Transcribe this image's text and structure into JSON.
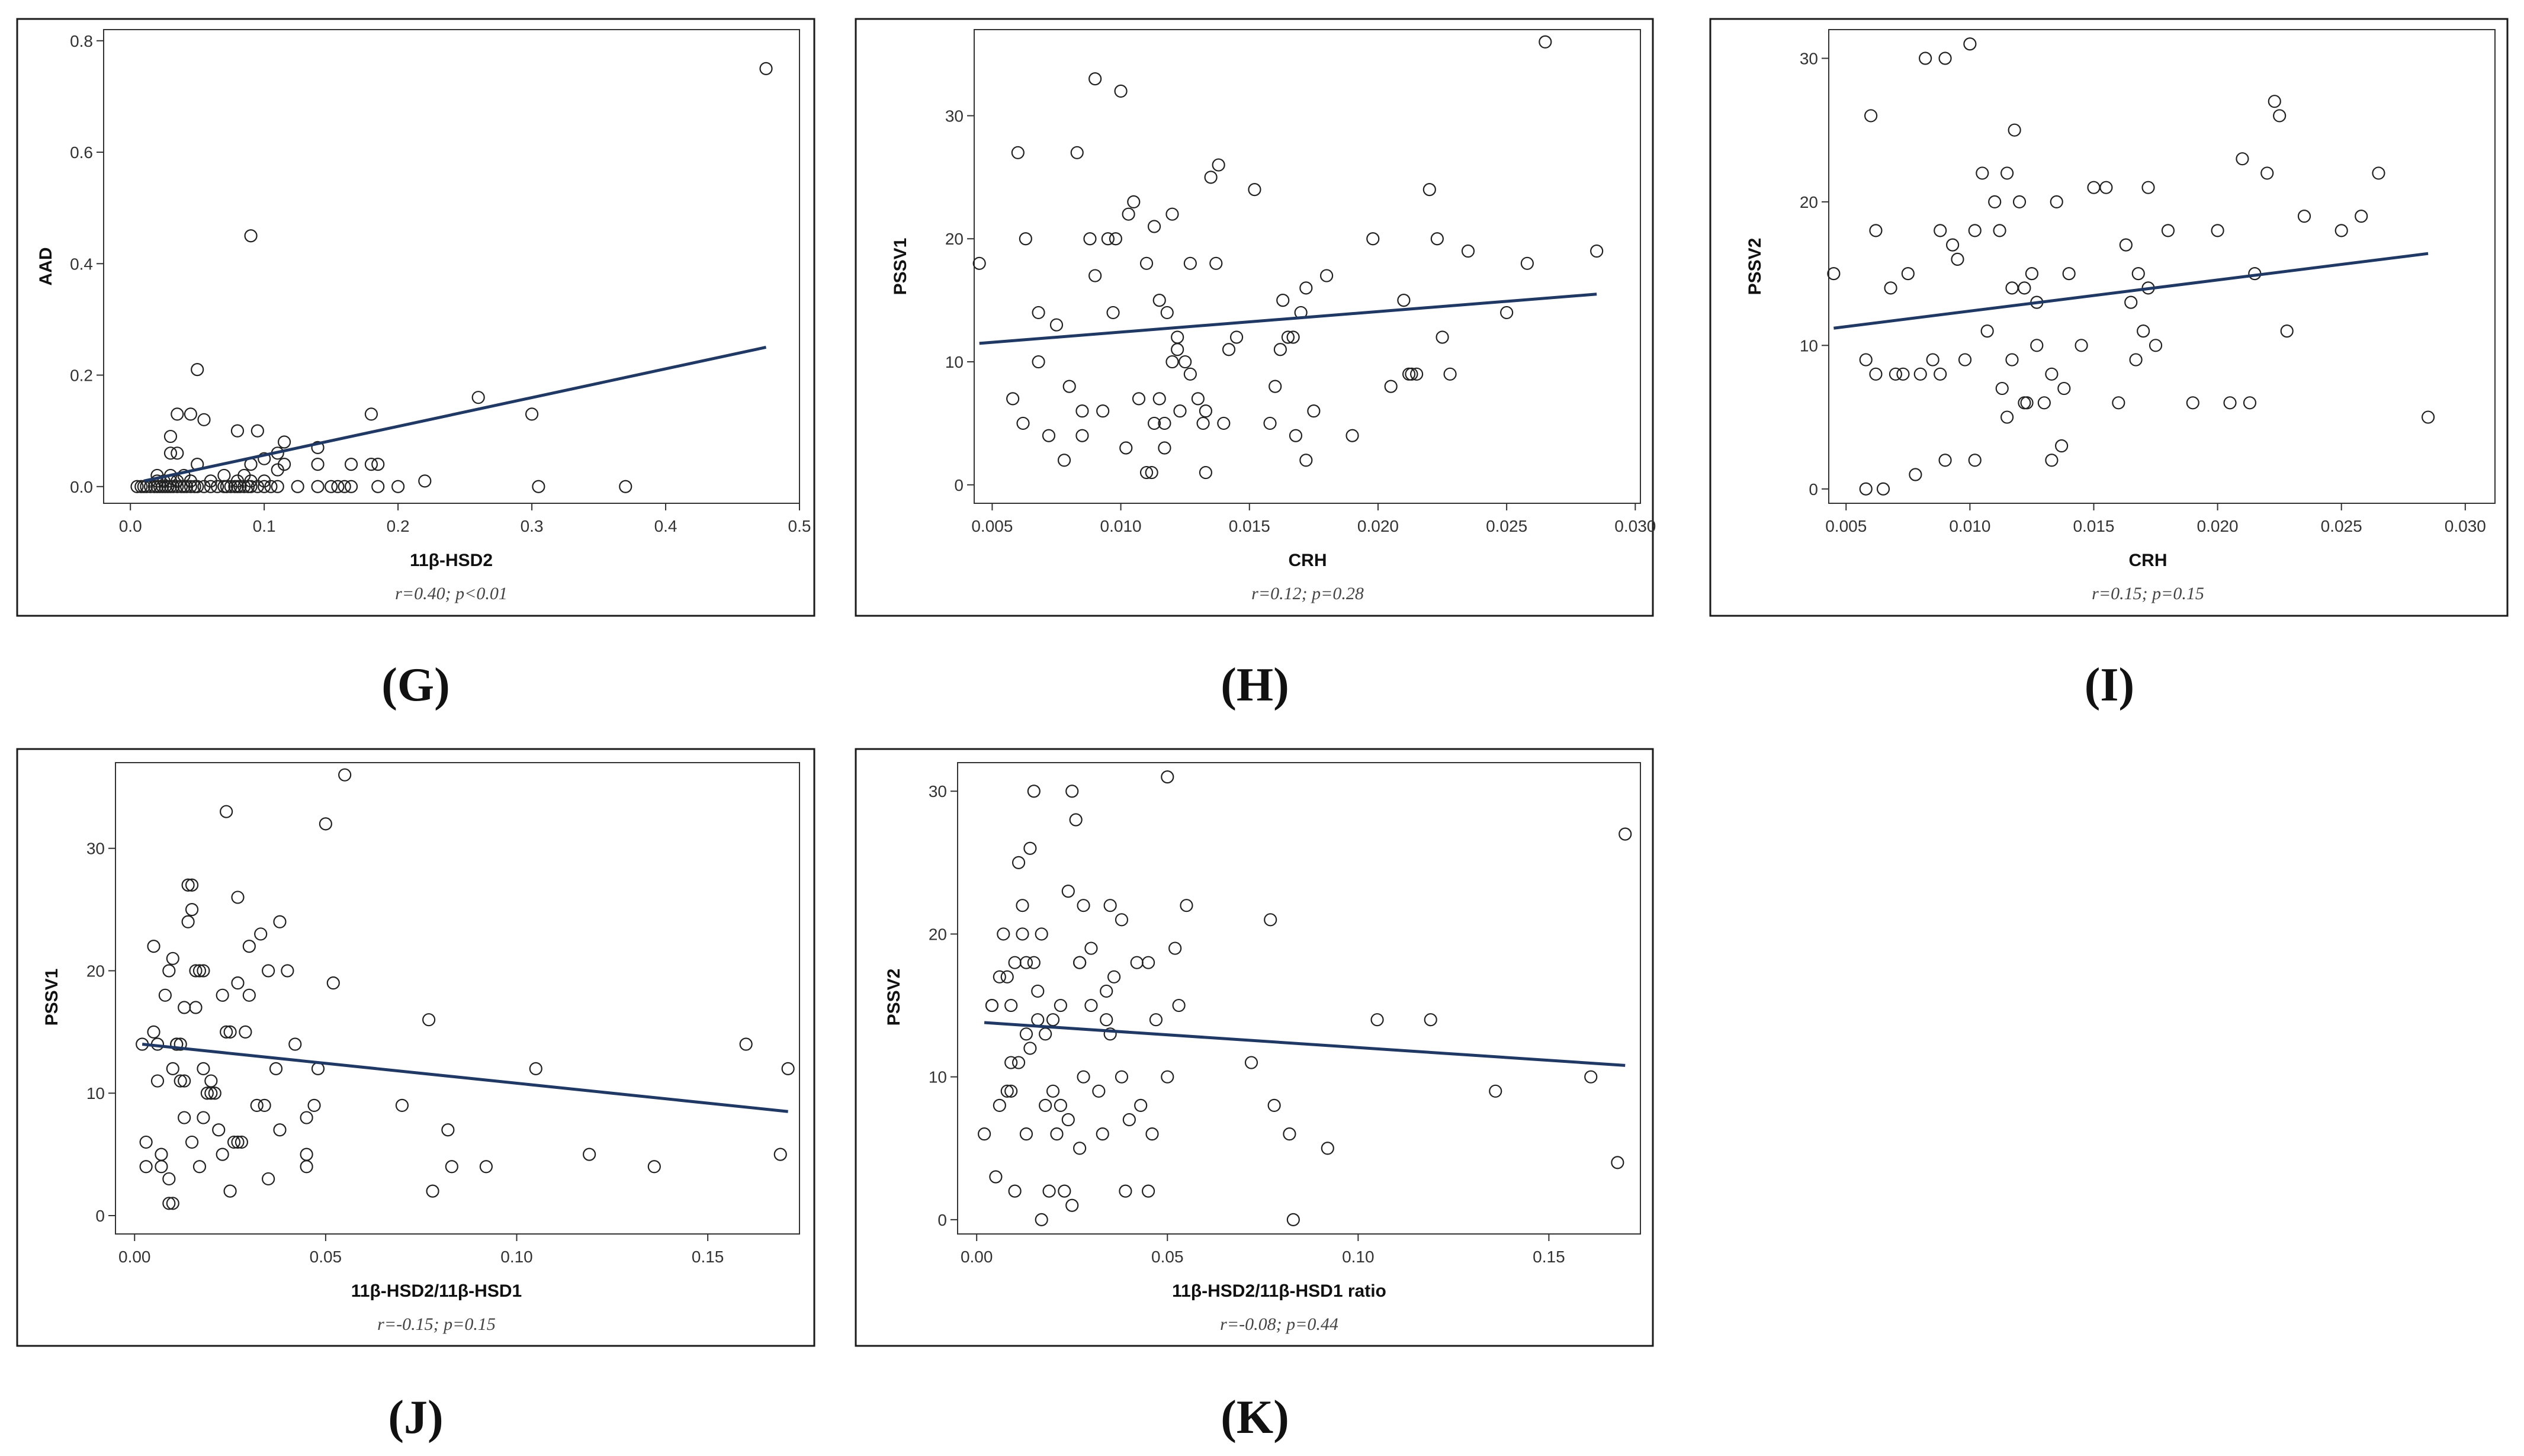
{
  "figure": {
    "panels": [
      "G",
      "H",
      "I",
      "J",
      "K"
    ]
  },
  "chart_data": [
    {
      "id": "G",
      "panel_label": "(G)",
      "type": "scatter",
      "xlabel": "11β-HSD2",
      "ylabel": "AAD",
      "stat": "r=0.40; p<0.01",
      "xlim": [
        -0.02,
        0.5
      ],
      "ylim": [
        -0.03,
        0.82
      ],
      "xticks": [
        0.0,
        0.1,
        0.2,
        0.3,
        0.4,
        0.5
      ],
      "xtick_labels": [
        "0.0",
        "0.1",
        "0.2",
        "0.3",
        "0.4",
        "0.5"
      ],
      "yticks": [
        0.0,
        0.2,
        0.4,
        0.6,
        0.8
      ],
      "ytick_labels": [
        "0.0",
        "0.2",
        "0.4",
        "0.6",
        "0.8"
      ],
      "x": [
        0.005,
        0.008,
        0.01,
        0.012,
        0.015,
        0.018,
        0.02,
        0.022,
        0.024,
        0.026,
        0.028,
        0.03,
        0.032,
        0.035,
        0.038,
        0.04,
        0.042,
        0.045,
        0.048,
        0.05,
        0.055,
        0.06,
        0.065,
        0.07,
        0.072,
        0.075,
        0.078,
        0.08,
        0.082,
        0.085,
        0.088,
        0.09,
        0.095,
        0.1,
        0.105,
        0.11,
        0.125,
        0.14,
        0.15,
        0.155,
        0.16,
        0.165,
        0.185,
        0.2,
        0.305,
        0.37,
        0.02,
        0.025,
        0.03,
        0.035,
        0.045,
        0.06,
        0.08,
        0.09,
        0.1,
        0.02,
        0.03,
        0.04,
        0.07,
        0.085,
        0.11,
        0.115,
        0.03,
        0.035,
        0.05,
        0.09,
        0.1,
        0.11,
        0.14,
        0.165,
        0.18,
        0.03,
        0.035,
        0.045,
        0.055,
        0.095,
        0.18,
        0.26,
        0.3,
        0.185,
        0.22,
        0.14,
        0.115,
        0.08,
        0.05,
        0.09,
        0.475
      ],
      "y": [
        0,
        0,
        0,
        0,
        0,
        0,
        0,
        0,
        0,
        0,
        0,
        0,
        0,
        0,
        0,
        0,
        0,
        0,
        0,
        0,
        0,
        0,
        0,
        0,
        0,
        0,
        0,
        0,
        0,
        0,
        0,
        0,
        0,
        0,
        0,
        0,
        0,
        0,
        0,
        0,
        0,
        0,
        0,
        0,
        0,
        0,
        0.01,
        0.01,
        0.01,
        0.01,
        0.01,
        0.01,
        0.01,
        0.01,
        0.01,
        0.02,
        0.02,
        0.02,
        0.02,
        0.02,
        0.03,
        0.04,
        0.06,
        0.06,
        0.04,
        0.04,
        0.05,
        0.06,
        0.07,
        0.04,
        0.04,
        0.09,
        0.13,
        0.13,
        0.12,
        0.1,
        0.13,
        0.16,
        0.13,
        0.04,
        0.01,
        0.04,
        0.08,
        0.1,
        0.21,
        0.45,
        0.75
      ],
      "fit": {
        "x": [
          0.01,
          0.475
        ],
        "y": [
          0.01,
          0.25
        ]
      }
    },
    {
      "id": "H",
      "panel_label": "(H)",
      "type": "scatter",
      "xlabel": "CRH",
      "ylabel": "PSSV1",
      "stat": "r=0.12; p=0.28",
      "xlim": [
        0.0043,
        0.0302
      ],
      "ylim": [
        -1.5,
        37
      ],
      "xticks": [
        0.005,
        0.01,
        0.015,
        0.02,
        0.025,
        0.03
      ],
      "xtick_labels": [
        "0.005",
        "0.010",
        "0.015",
        "0.020",
        "0.025",
        "0.030"
      ],
      "yticks": [
        0,
        10,
        20,
        30
      ],
      "ytick_labels": [
        "0",
        "10",
        "20",
        "30"
      ],
      "x": [
        0.0045,
        0.006,
        0.0063,
        0.0075,
        0.0083,
        0.0088,
        0.009,
        0.0095,
        0.0097,
        0.01,
        0.0103,
        0.0105,
        0.011,
        0.0112,
        0.0115,
        0.0117,
        0.0118,
        0.012,
        0.0122,
        0.0125,
        0.0127,
        0.013,
        0.0133,
        0.0135,
        0.0137,
        0.014,
        0.0145,
        0.0152,
        0.016,
        0.0163,
        0.0165,
        0.0168,
        0.017,
        0.0172,
        0.0175,
        0.018,
        0.019,
        0.0205,
        0.021,
        0.0215,
        0.022,
        0.0225,
        0.0228,
        0.0235,
        0.025,
        0.0258,
        0.0265,
        0.0285,
        0.0062,
        0.0068,
        0.0072,
        0.0078,
        0.008,
        0.0085,
        0.009,
        0.0093,
        0.0098,
        0.0102,
        0.0107,
        0.011,
        0.0113,
        0.0117,
        0.012,
        0.0123,
        0.0127,
        0.0132,
        0.0138,
        0.0142,
        0.0158,
        0.0162,
        0.0167,
        0.0172,
        0.0213,
        0.0212,
        0.0223,
        0.0198,
        0.0058,
        0.0068,
        0.0085,
        0.0113,
        0.0115,
        0.0122,
        0.0133
      ],
      "y": [
        18,
        27,
        20,
        13,
        27,
        20,
        33,
        20,
        14,
        32,
        22,
        23,
        18,
        1,
        15,
        3,
        14,
        22,
        12,
        10,
        18,
        7,
        6,
        25,
        18,
        5,
        12,
        24,
        8,
        15,
        12,
        4,
        14,
        2,
        6,
        17,
        4,
        8,
        15,
        9,
        24,
        12,
        9,
        19,
        14,
        18,
        36,
        19,
        5,
        14,
        4,
        2,
        8,
        4,
        17,
        6,
        20,
        3,
        7,
        1,
        5,
        5,
        10,
        6,
        9,
        5,
        26,
        11,
        5,
        11,
        12,
        16,
        9,
        9,
        20,
        20,
        7,
        10,
        6,
        21,
        7,
        11,
        1
      ],
      "fit": {
        "x": [
          0.0045,
          0.0285
        ],
        "y": [
          11.5,
          15.5
        ]
      }
    },
    {
      "id": "I",
      "panel_label": "(I)",
      "type": "scatter",
      "xlabel": "CRH",
      "ylabel": "PSSV2",
      "stat": "r=0.15; p=0.15",
      "xlim": [
        0.0043,
        0.0312
      ],
      "ylim": [
        -1,
        32
      ],
      "xticks": [
        0.005,
        0.01,
        0.015,
        0.02,
        0.025,
        0.03
      ],
      "xtick_labels": [
        "0.005",
        "0.010",
        "0.015",
        "0.020",
        "0.025",
        "0.030"
      ],
      "yticks": [
        0,
        10,
        20,
        30
      ],
      "ytick_labels": [
        "0",
        "10",
        "20",
        "30"
      ],
      "x": [
        0.0045,
        0.0058,
        0.006,
        0.0062,
        0.0065,
        0.0068,
        0.007,
        0.0073,
        0.0075,
        0.0078,
        0.008,
        0.0082,
        0.0085,
        0.0088,
        0.009,
        0.0093,
        0.0095,
        0.0098,
        0.01,
        0.0102,
        0.0105,
        0.0107,
        0.011,
        0.0112,
        0.0115,
        0.0117,
        0.012,
        0.0122,
        0.0125,
        0.0127,
        0.013,
        0.0133,
        0.0135,
        0.0138,
        0.014,
        0.0145,
        0.015,
        0.0155,
        0.016,
        0.0163,
        0.0165,
        0.0168,
        0.017,
        0.0172,
        0.0175,
        0.018,
        0.019,
        0.02,
        0.0205,
        0.021,
        0.0213,
        0.0215,
        0.022,
        0.0225,
        0.0228,
        0.0235,
        0.025,
        0.0258,
        0.0265,
        0.0285,
        0.0058,
        0.0062,
        0.0088,
        0.009,
        0.0102,
        0.0117,
        0.0122,
        0.0127,
        0.0133,
        0.0137,
        0.0115,
        0.0113,
        0.0118,
        0.0123,
        0.0167,
        0.0172,
        0.0223
      ],
      "y": [
        15,
        0,
        26,
        18,
        0,
        14,
        8,
        8,
        15,
        1,
        8,
        30,
        9,
        18,
        30,
        17,
        16,
        9,
        31,
        18,
        22,
        11,
        20,
        18,
        22,
        14,
        20,
        6,
        15,
        13,
        6,
        8,
        20,
        7,
        15,
        10,
        21,
        21,
        6,
        17,
        13,
        15,
        11,
        21,
        10,
        18,
        6,
        18,
        6,
        23,
        6,
        15,
        22,
        26,
        11,
        19,
        18,
        19,
        22,
        5,
        9,
        8,
        8,
        2,
        2,
        9,
        14,
        10,
        2,
        3,
        5,
        7,
        25,
        6,
        9,
        14,
        27
      ],
      "fit": {
        "x": [
          0.0045,
          0.0285
        ],
        "y": [
          11.2,
          16.4
        ]
      }
    },
    {
      "id": "J",
      "panel_label": "(J)",
      "type": "scatter",
      "xlabel": "11β-HSD2/11β-HSD1",
      "ylabel": "PSSV1",
      "stat": "r=-0.15; p=0.15",
      "xlim": [
        -0.005,
        0.174
      ],
      "ylim": [
        -1.5,
        37
      ],
      "xticks": [
        0.0,
        0.05,
        0.1,
        0.15
      ],
      "xtick_labels": [
        "0.00",
        "0.05",
        "0.10",
        "0.15"
      ],
      "yticks": [
        0,
        10,
        20,
        30
      ],
      "ytick_labels": [
        "0",
        "10",
        "20",
        "30"
      ],
      "x": [
        0.002,
        0.003,
        0.005,
        0.006,
        0.007,
        0.008,
        0.009,
        0.01,
        0.011,
        0.012,
        0.013,
        0.014,
        0.015,
        0.016,
        0.017,
        0.018,
        0.019,
        0.02,
        0.022,
        0.023,
        0.024,
        0.025,
        0.026,
        0.027,
        0.028,
        0.029,
        0.03,
        0.032,
        0.033,
        0.035,
        0.037,
        0.038,
        0.04,
        0.042,
        0.045,
        0.047,
        0.05,
        0.052,
        0.055,
        0.07,
        0.077,
        0.078,
        0.082,
        0.083,
        0.092,
        0.105,
        0.119,
        0.136,
        0.16,
        0.169,
        0.171,
        0.003,
        0.005,
        0.007,
        0.009,
        0.01,
        0.012,
        0.013,
        0.014,
        0.016,
        0.018,
        0.02,
        0.023,
        0.025,
        0.027,
        0.03,
        0.034,
        0.038,
        0.045,
        0.048,
        0.006,
        0.01,
        0.013,
        0.015,
        0.018,
        0.021,
        0.024,
        0.027,
        0.035,
        0.045,
        0.009,
        0.011,
        0.015,
        0.017
      ],
      "y": [
        14,
        4,
        22,
        14,
        4,
        18,
        20,
        21,
        14,
        11,
        17,
        27,
        25,
        20,
        4,
        12,
        10,
        11,
        7,
        5,
        33,
        15,
        6,
        26,
        6,
        15,
        18,
        9,
        23,
        20,
        12,
        24,
        20,
        14,
        5,
        9,
        32,
        19,
        36,
        9,
        16,
        2,
        7,
        4,
        4,
        12,
        5,
        4,
        14,
        5,
        12,
        6,
        15,
        5,
        1,
        12,
        14,
        8,
        24,
        17,
        8,
        10,
        18,
        2,
        19,
        22,
        9,
        7,
        4,
        12,
        11,
        1,
        11,
        27,
        20,
        10,
        15,
        6,
        3,
        8,
        3,
        14,
        6,
        20
      ],
      "fit": {
        "x": [
          0.002,
          0.171
        ],
        "y": [
          14.0,
          8.5
        ]
      }
    },
    {
      "id": "K",
      "panel_label": "(K)",
      "type": "scatter",
      "xlabel": "11β-HSD2/11β-HSD1 ratio",
      "ylabel": "PSSV2",
      "stat": "r=-0.08; p=0.44",
      "xlim": [
        -0.005,
        0.174
      ],
      "ylim": [
        -1,
        32
      ],
      "xticks": [
        0.0,
        0.05,
        0.1,
        0.15
      ],
      "xtick_labels": [
        "0.00",
        "0.05",
        "0.10",
        "0.15"
      ],
      "yticks": [
        0,
        10,
        20,
        30
      ],
      "ytick_labels": [
        "0",
        "10",
        "20",
        "30"
      ],
      "x": [
        0.002,
        0.004,
        0.005,
        0.006,
        0.007,
        0.008,
        0.009,
        0.01,
        0.011,
        0.012,
        0.013,
        0.014,
        0.015,
        0.016,
        0.017,
        0.018,
        0.02,
        0.021,
        0.022,
        0.023,
        0.024,
        0.025,
        0.026,
        0.027,
        0.028,
        0.03,
        0.032,
        0.034,
        0.035,
        0.036,
        0.038,
        0.04,
        0.042,
        0.045,
        0.047,
        0.05,
        0.052,
        0.055,
        0.072,
        0.077,
        0.078,
        0.082,
        0.083,
        0.092,
        0.105,
        0.119,
        0.136,
        0.161,
        0.168,
        0.17,
        0.004,
        0.006,
        0.008,
        0.009,
        0.011,
        0.013,
        0.015,
        0.018,
        0.02,
        0.022,
        0.025,
        0.027,
        0.03,
        0.033,
        0.035,
        0.038,
        0.043,
        0.046,
        0.05,
        0.053,
        0.01,
        0.012,
        0.014,
        0.017,
        0.019,
        0.024,
        0.028,
        0.034,
        0.039,
        0.045,
        0.013,
        0.027,
        0.009,
        0.016
      ],
      "y": [
        6,
        15,
        3,
        8,
        20,
        17,
        11,
        2,
        25,
        22,
        18,
        26,
        30,
        14,
        20,
        8,
        14,
        6,
        15,
        2,
        23,
        30,
        28,
        18,
        22,
        19,
        9,
        16,
        22,
        17,
        21,
        7,
        18,
        2,
        14,
        31,
        19,
        22,
        11,
        21,
        8,
        6,
        0,
        5,
        14,
        14,
        9,
        10,
        4,
        27,
        15,
        17,
        9,
        15,
        11,
        13,
        18,
        13,
        9,
        8,
        1,
        5,
        15,
        6,
        13,
        10,
        8,
        6,
        10,
        15,
        18,
        20,
        12,
        0,
        2,
        7,
        10,
        14,
        2,
        18,
        6,
        18,
        9,
        16
      ],
      "fit": {
        "x": [
          0.002,
          0.17
        ],
        "y": [
          13.8,
          10.8
        ]
      }
    }
  ]
}
